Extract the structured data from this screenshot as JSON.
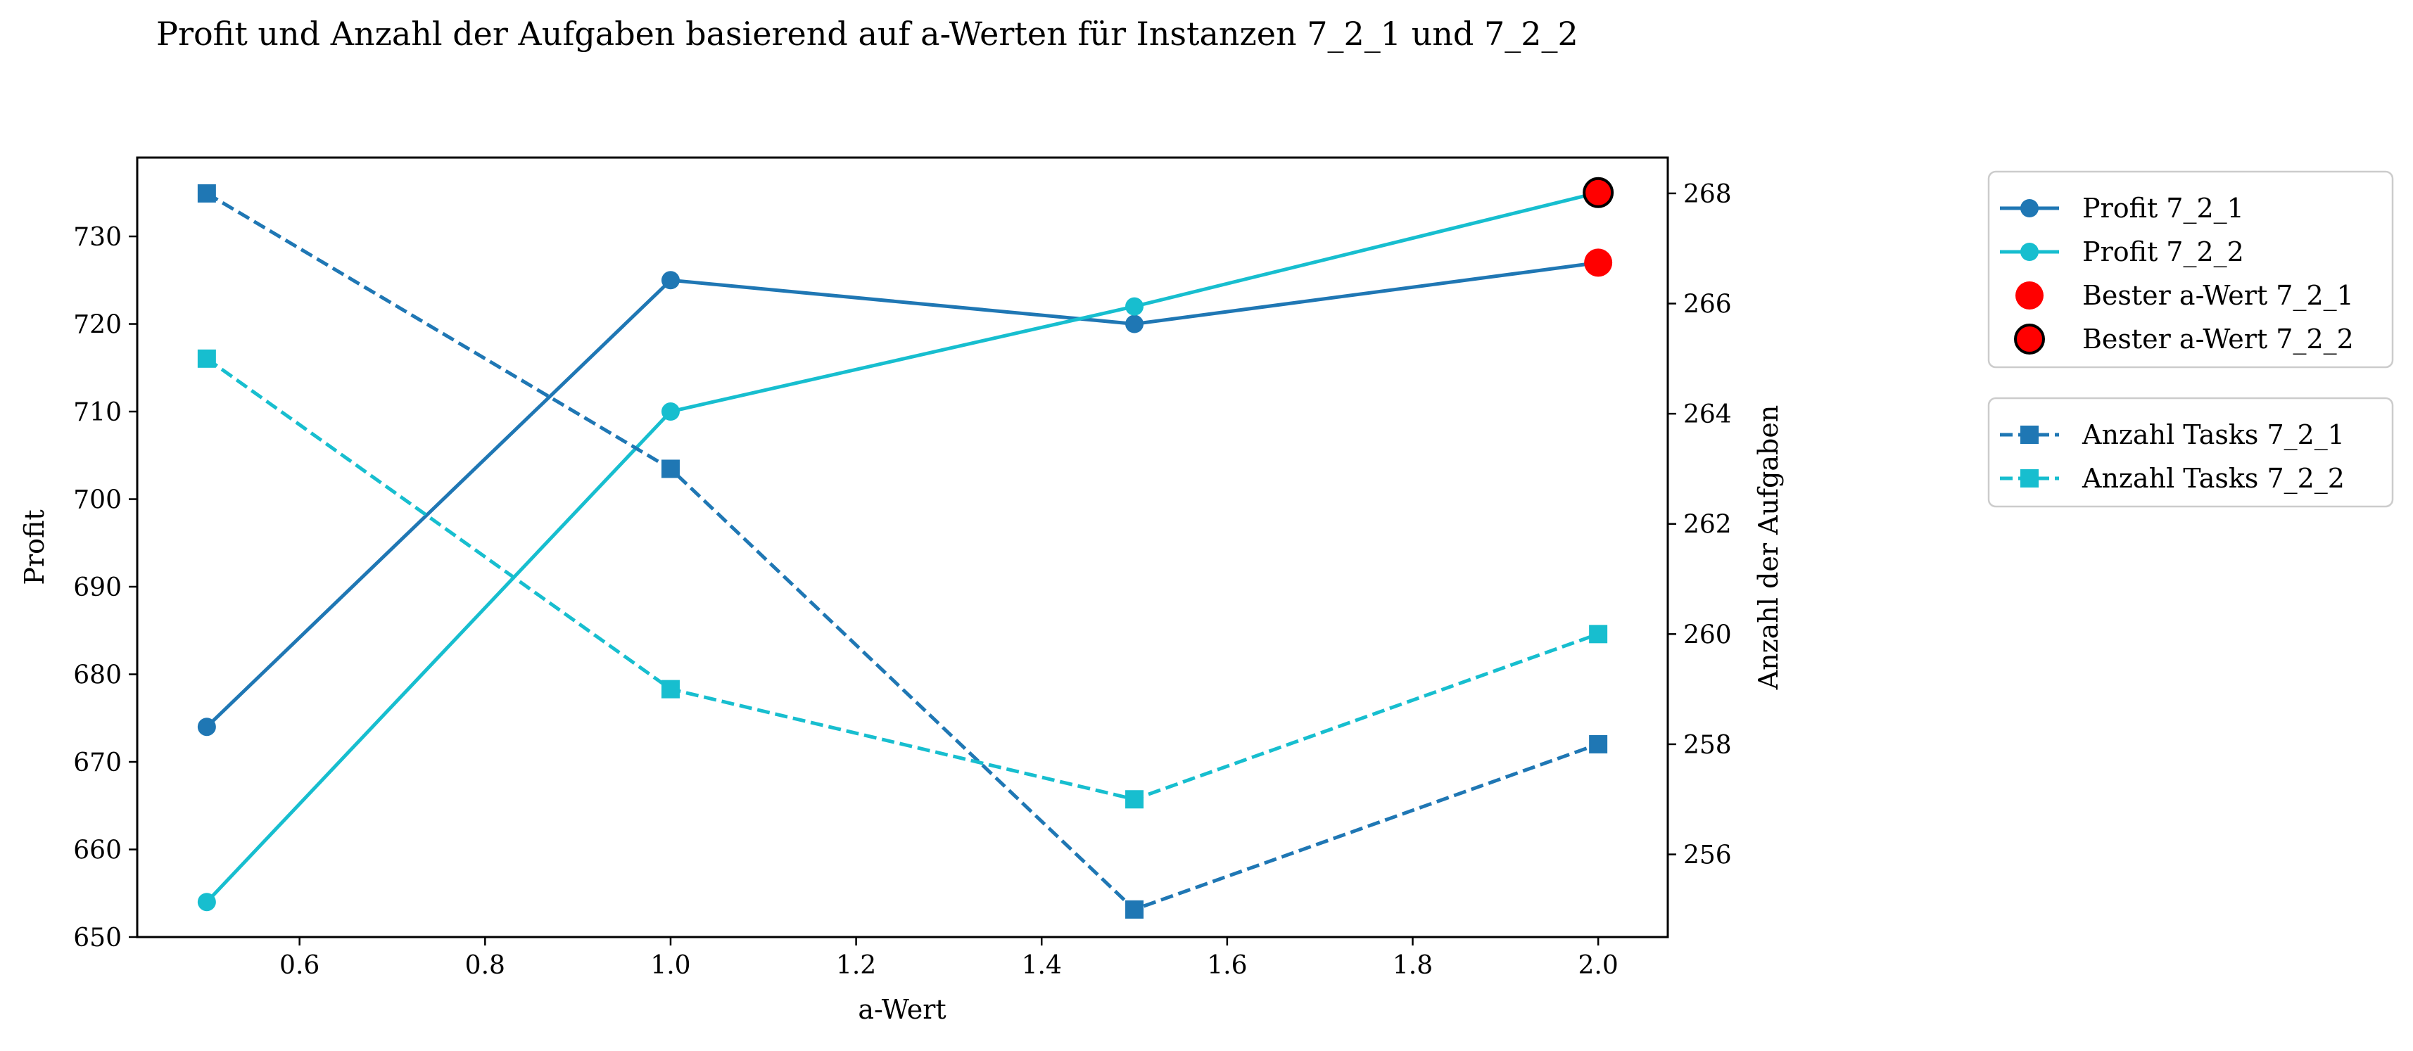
{
  "chart_data": {
    "type": "line",
    "title": "Profit und Anzahl der Aufgaben basierend auf a-Werten für Instanzen 7_2_1 und 7_2_2",
    "xlabel": "a-Wert",
    "ylabel_left": "Profit",
    "ylabel_right": "Anzahl der Aufgaben",
    "x": [
      0.5,
      1.0,
      1.5,
      2.0
    ],
    "xlim": [
      0.425,
      2.075
    ],
    "ylim_left": [
      650,
      739
    ],
    "ylim_right": [
      254.5,
      268.65
    ],
    "x_ticks": [
      "0.6",
      "0.8",
      "1.0",
      "1.2",
      "1.4",
      "1.6",
      "1.8",
      "2.0"
    ],
    "y_ticks_left": [
      "650",
      "660",
      "670",
      "680",
      "690",
      "700",
      "710",
      "720",
      "730"
    ],
    "y_ticks_right": [
      "256",
      "258",
      "260",
      "262",
      "264",
      "266",
      "268"
    ],
    "grid": false,
    "legend_placement": "outside right",
    "series": [
      {
        "name": "Profit 7_2_1",
        "axis": "left",
        "style": "solid",
        "marker": "circle",
        "color": "#1f77b4",
        "values": [
          674,
          725,
          720,
          727
        ]
      },
      {
        "name": "Profit 7_2_2",
        "axis": "left",
        "style": "solid",
        "marker": "circle",
        "color": "#17becf",
        "values": [
          654,
          710,
          722,
          735
        ]
      },
      {
        "name": "Anzahl Tasks 7_2_1",
        "axis": "right",
        "style": "dashed",
        "marker": "square",
        "color": "#1f77b4",
        "values": [
          268,
          263,
          255,
          258
        ]
      },
      {
        "name": "Anzahl Tasks 7_2_2",
        "axis": "right",
        "style": "dashed",
        "marker": "square",
        "color": "#17becf",
        "values": [
          265,
          259,
          257,
          260
        ]
      }
    ],
    "best_points": [
      {
        "name": "Bester a-Wert 7_2_1",
        "x": 2.0,
        "y": 727,
        "color": "#ff0000",
        "edge": "none"
      },
      {
        "name": "Bester a-Wert 7_2_2",
        "x": 2.0,
        "y": 735,
        "color": "#ff0000",
        "edge": "#000000"
      }
    ],
    "legend1": [
      "Profit 7_2_1",
      "Profit 7_2_2",
      "Bester a-Wert 7_2_1",
      "Bester a-Wert 7_2_2"
    ],
    "legend2": [
      "Anzahl Tasks 7_2_1",
      "Anzahl Tasks 7_2_2"
    ]
  }
}
